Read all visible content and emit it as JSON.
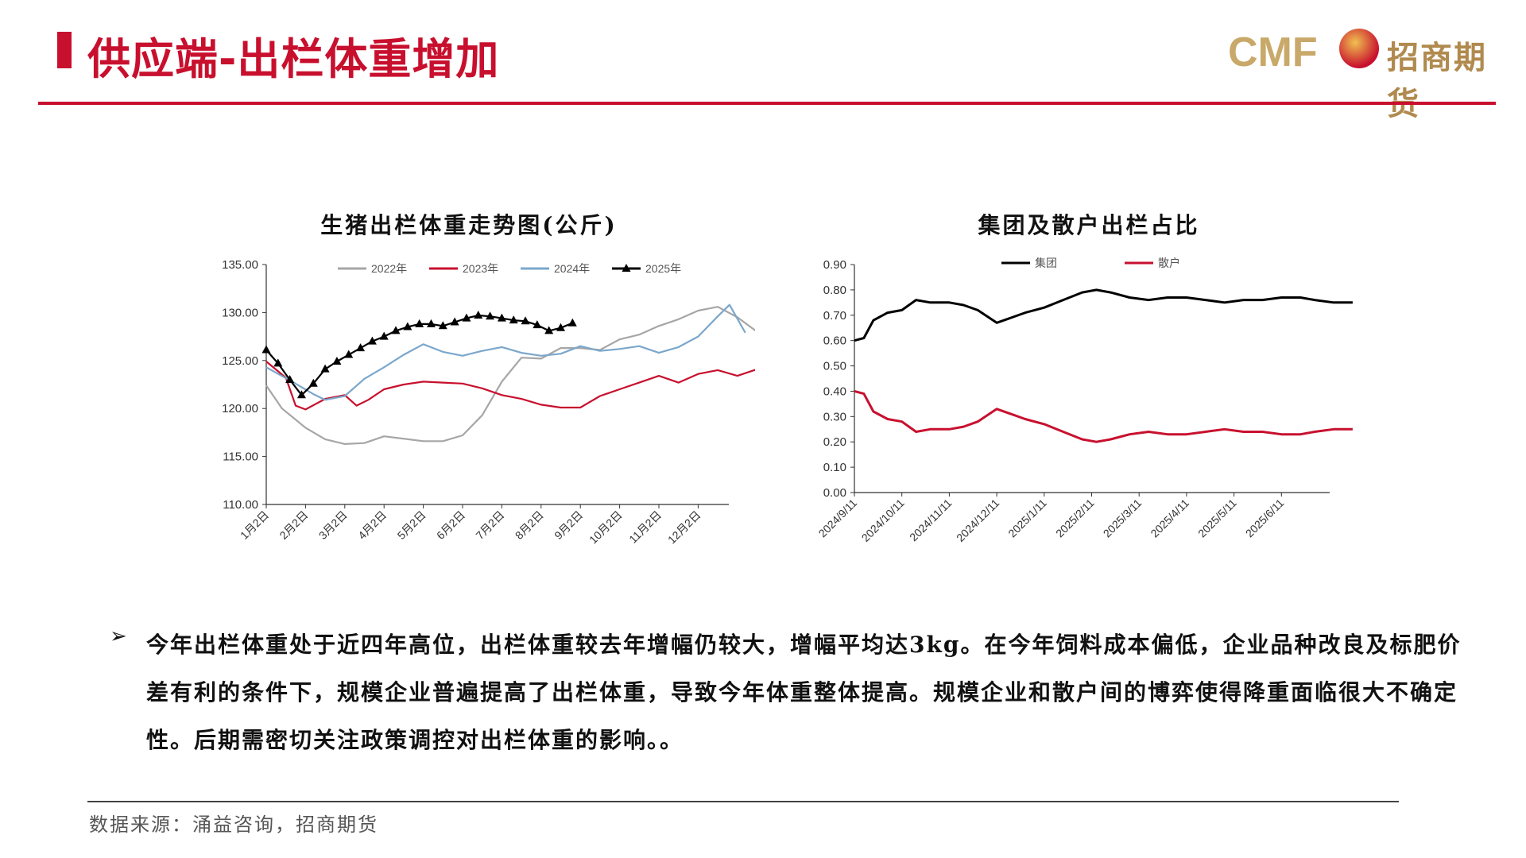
{
  "header": {
    "title": "供应端-出栏体重增加"
  },
  "logo": {
    "brand": "CMF",
    "name": "招商期货"
  },
  "chart_data": [
    {
      "type": "line",
      "title": "生猪出栏体重走势图(公斤)",
      "ylim": [
        110,
        135
      ],
      "yticks": [
        "135.00",
        "130.00",
        "125.00",
        "120.00",
        "115.00",
        "110.00"
      ],
      "xticks": [
        "1月2日",
        "2月2日",
        "3月2日",
        "4月2日",
        "5月2日",
        "6月2日",
        "7月2日",
        "8月2日",
        "9月2日",
        "10月2日",
        "11月2日",
        "12月2日"
      ],
      "legend_position": "top",
      "series": [
        {
          "name": "2022年",
          "color": "#a6a6a6",
          "points": [
            [
              0,
              122.4
            ],
            [
              0.4,
              120
            ],
            [
              1,
              118
            ],
            [
              1.5,
              116.8
            ],
            [
              2,
              116.3
            ],
            [
              2.5,
              116.4
            ],
            [
              3,
              117.1
            ],
            [
              4,
              116.6
            ],
            [
              4.5,
              116.6
            ],
            [
              5,
              117.2
            ],
            [
              5.5,
              119.3
            ],
            [
              6,
              122.8
            ],
            [
              6.5,
              125.3
            ],
            [
              7,
              125.2
            ],
            [
              7.5,
              126.3
            ],
            [
              8,
              126.3
            ],
            [
              8.5,
              126.1
            ],
            [
              9,
              127.2
            ],
            [
              9.5,
              127.7
            ],
            [
              10,
              128.6
            ],
            [
              10.5,
              129.3
            ],
            [
              11,
              130.2
            ],
            [
              11.5,
              130.6
            ],
            [
              12,
              129.5
            ],
            [
              12.5,
              128
            ],
            [
              13,
              127.3
            ]
          ]
        },
        {
          "name": "2023年",
          "color": "#c8102e",
          "points": [
            [
              0,
              124.9
            ],
            [
              0.5,
              123.2
            ],
            [
              0.75,
              120.3
            ],
            [
              1,
              119.9
            ],
            [
              1.5,
              121
            ],
            [
              2,
              121.4
            ],
            [
              2.3,
              120.3
            ],
            [
              2.6,
              120.9
            ],
            [
              3,
              122
            ],
            [
              3.5,
              122.5
            ],
            [
              4,
              122.8
            ],
            [
              4.5,
              122.7
            ],
            [
              5,
              122.6
            ],
            [
              5.5,
              122.1
            ],
            [
              6,
              121.4
            ],
            [
              6.5,
              121
            ],
            [
              7,
              120.4
            ],
            [
              7.5,
              120.1
            ],
            [
              8,
              120.1
            ],
            [
              8.5,
              121.3
            ],
            [
              9,
              122
            ],
            [
              9.5,
              122.7
            ],
            [
              10,
              123.4
            ],
            [
              10.5,
              122.7
            ],
            [
              11,
              123.6
            ],
            [
              11.5,
              124
            ],
            [
              12,
              123.4
            ],
            [
              12.5,
              124.1
            ],
            [
              13,
              124.3
            ]
          ]
        },
        {
          "name": "2024年",
          "color": "#7ba7cc",
          "points": [
            [
              0,
              124.3
            ],
            [
              0.7,
              122.7
            ],
            [
              1.2,
              121.5
            ],
            [
              1.5,
              120.9
            ],
            [
              2,
              121.3
            ],
            [
              2.5,
              123.1
            ],
            [
              3,
              124.3
            ],
            [
              3.5,
              125.6
            ],
            [
              4,
              126.7
            ],
            [
              4.5,
              125.9
            ],
            [
              5,
              125.5
            ],
            [
              5.5,
              126
            ],
            [
              6,
              126.4
            ],
            [
              6.5,
              125.8
            ],
            [
              7,
              125.5
            ],
            [
              7.5,
              125.7
            ],
            [
              8,
              126.5
            ],
            [
              8.5,
              126
            ],
            [
              9,
              126.2
            ],
            [
              9.5,
              126.5
            ],
            [
              10,
              125.8
            ],
            [
              10.5,
              126.4
            ],
            [
              11,
              127.5
            ],
            [
              11.5,
              129.6
            ],
            [
              11.8,
              130.8
            ],
            [
              12.2,
              127.9
            ]
          ]
        },
        {
          "name": "2025年",
          "color": "#000000",
          "markers": true,
          "points": [
            [
              0,
              126.1
            ],
            [
              0.3,
              124.7
            ],
            [
              0.6,
              123
            ],
            [
              0.9,
              121.4
            ],
            [
              1.2,
              122.6
            ],
            [
              1.5,
              124.1
            ],
            [
              1.8,
              124.9
            ],
            [
              2.1,
              125.6
            ],
            [
              2.4,
              126.3
            ],
            [
              2.7,
              127
            ],
            [
              3,
              127.5
            ],
            [
              3.3,
              128.1
            ],
            [
              3.6,
              128.5
            ],
            [
              3.9,
              128.8
            ],
            [
              4.2,
              128.8
            ],
            [
              4.5,
              128.6
            ],
            [
              4.8,
              129
            ],
            [
              5.1,
              129.4
            ],
            [
              5.4,
              129.7
            ],
            [
              5.7,
              129.6
            ],
            [
              6,
              129.4
            ],
            [
              6.3,
              129.2
            ],
            [
              6.6,
              129.1
            ],
            [
              6.9,
              128.7
            ],
            [
              7.2,
              128.1
            ],
            [
              7.5,
              128.4
            ],
            [
              7.8,
              128.9
            ]
          ]
        }
      ]
    },
    {
      "type": "line",
      "title": "集团及散户出栏占比",
      "ylim": [
        0,
        0.9
      ],
      "yticks": [
        "0.90",
        "0.80",
        "0.70",
        "0.60",
        "0.50",
        "0.40",
        "0.30",
        "0.20",
        "0.10",
        "0.00"
      ],
      "xticks": [
        "2024/9/11",
        "2024/10/11",
        "2024/11/11",
        "2024/12/11",
        "2025/1/11",
        "2025/2/11",
        "2025/3/11",
        "2025/4/11",
        "2025/5/11",
        "2025/6/11"
      ],
      "legend_position": "top",
      "series": [
        {
          "name": "集团",
          "color": "#000000",
          "points": [
            [
              0,
              0.6
            ],
            [
              0.2,
              0.61
            ],
            [
              0.4,
              0.68
            ],
            [
              0.7,
              0.71
            ],
            [
              1,
              0.72
            ],
            [
              1.3,
              0.76
            ],
            [
              1.6,
              0.75
            ],
            [
              2,
              0.75
            ],
            [
              2.3,
              0.74
            ],
            [
              2.6,
              0.72
            ],
            [
              3,
              0.67
            ],
            [
              3.3,
              0.69
            ],
            [
              3.6,
              0.71
            ],
            [
              4,
              0.73
            ],
            [
              4.4,
              0.76
            ],
            [
              4.8,
              0.79
            ],
            [
              5.1,
              0.8
            ],
            [
              5.4,
              0.79
            ],
            [
              5.8,
              0.77
            ],
            [
              6.2,
              0.76
            ],
            [
              6.6,
              0.77
            ],
            [
              7,
              0.77
            ],
            [
              7.4,
              0.76
            ],
            [
              7.8,
              0.75
            ],
            [
              8.2,
              0.76
            ],
            [
              8.6,
              0.76
            ],
            [
              9,
              0.77
            ],
            [
              9.4,
              0.77
            ],
            [
              9.7,
              0.76
            ],
            [
              10.1,
              0.75
            ],
            [
              10.5,
              0.75
            ]
          ]
        },
        {
          "name": "散户",
          "color": "#c8102e",
          "points": [
            [
              0,
              0.4
            ],
            [
              0.2,
              0.39
            ],
            [
              0.4,
              0.32
            ],
            [
              0.7,
              0.29
            ],
            [
              1,
              0.28
            ],
            [
              1.3,
              0.24
            ],
            [
              1.6,
              0.25
            ],
            [
              2,
              0.25
            ],
            [
              2.3,
              0.26
            ],
            [
              2.6,
              0.28
            ],
            [
              3,
              0.33
            ],
            [
              3.3,
              0.31
            ],
            [
              3.6,
              0.29
            ],
            [
              4,
              0.27
            ],
            [
              4.4,
              0.24
            ],
            [
              4.8,
              0.21
            ],
            [
              5.1,
              0.2
            ],
            [
              5.4,
              0.21
            ],
            [
              5.8,
              0.23
            ],
            [
              6.2,
              0.24
            ],
            [
              6.6,
              0.23
            ],
            [
              7,
              0.23
            ],
            [
              7.4,
              0.24
            ],
            [
              7.8,
              0.25
            ],
            [
              8.2,
              0.24
            ],
            [
              8.6,
              0.24
            ],
            [
              9,
              0.23
            ],
            [
              9.4,
              0.23
            ],
            [
              9.7,
              0.24
            ],
            [
              10.1,
              0.25
            ],
            [
              10.5,
              0.25
            ]
          ]
        }
      ]
    }
  ],
  "bullet": {
    "mark": "➢",
    "text": "今年出栏体重处于近四年高位，出栏体重较去年增幅仍较大，增幅平均达3kg。在今年饲料成本偏低，企业品种改良及标肥价差有利的条件下，规模企业普遍提高了出栏体重，导致今年体重整体提高。规模企业和散户间的博弈使得降重面临很大不确定性。后期需密切关注政策调控对出栏体重的影响。。"
  },
  "footer": {
    "source": "数据来源：涌益咨询，招商期货"
  }
}
